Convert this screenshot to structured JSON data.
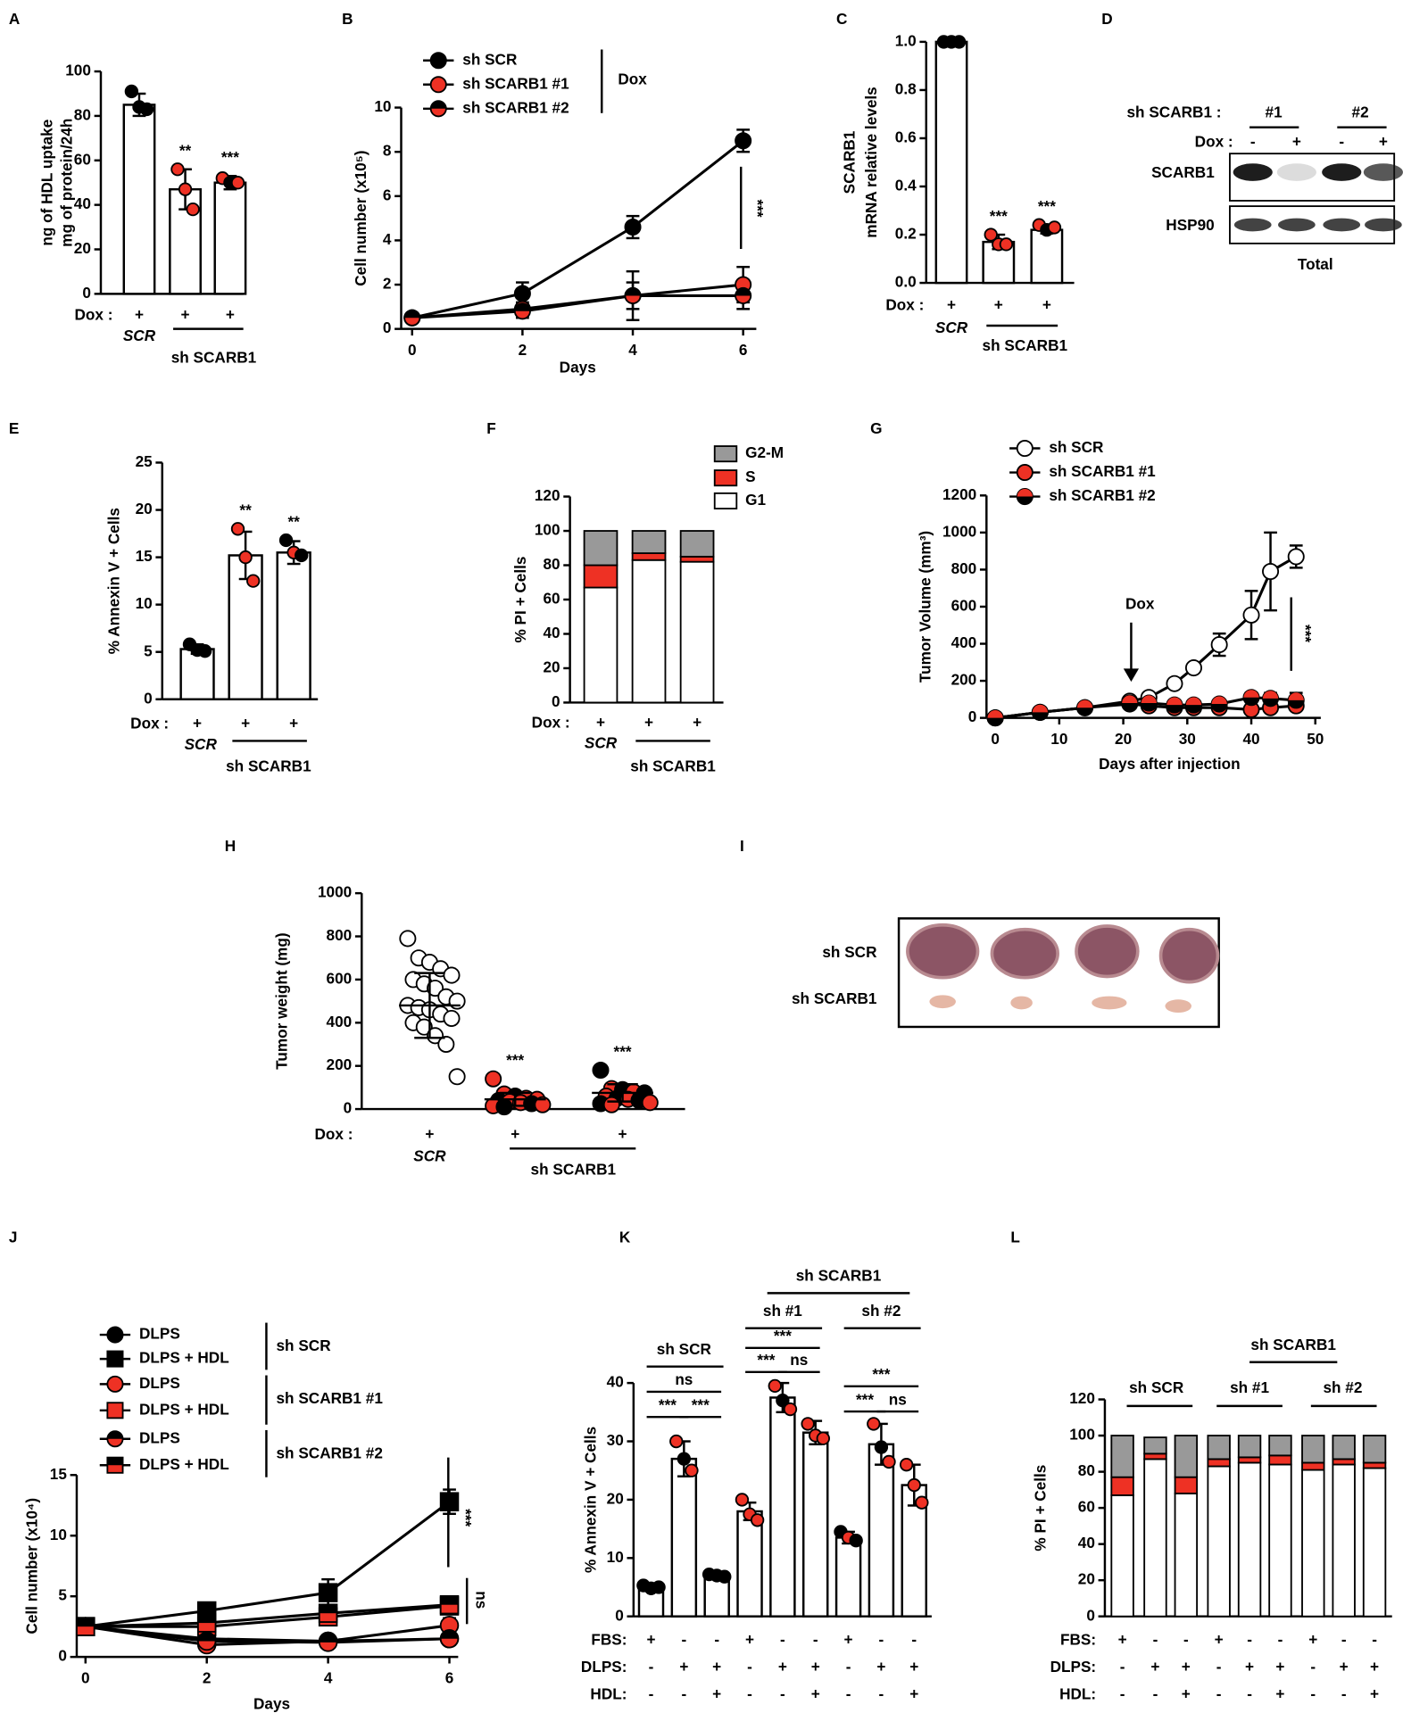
{
  "panel_labels": [
    "A",
    "B",
    "C",
    "D",
    "E",
    "F",
    "G",
    "H",
    "I",
    "J",
    "K",
    "L"
  ],
  "blot": {
    "header": "sh SCARB1 :",
    "groups": [
      "#1",
      "#2"
    ],
    "dox_label": "Dox :",
    "dox": [
      "-",
      "+",
      "-",
      "+"
    ],
    "rows": [
      "SCARB1",
      "HSP90"
    ],
    "caption": "Total"
  },
  "photo": {
    "rows": [
      "sh SCR",
      "sh SCARB1"
    ]
  },
  "chart_data": [
    {
      "type": "bar",
      "ylabel": [
        "ng of HDL uptake",
        "mg of protein/24h"
      ],
      "ylim": [
        0,
        100
      ],
      "yticks": [
        0,
        20,
        40,
        60,
        80,
        100
      ],
      "values": [
        85,
        47,
        50
      ],
      "errors": [
        5,
        9,
        3
      ],
      "points": [
        [
          91,
          84,
          83
        ],
        [
          56,
          47,
          38
        ],
        [
          52,
          50,
          50
        ]
      ],
      "point_colors": [
        [
          "#000000"
        ],
        [
          "#ee3124"
        ],
        [
          "#ee3124",
          "#000000",
          "#ee3124"
        ]
      ],
      "sig": [
        null,
        "**",
        "***"
      ],
      "rows": [
        {
          "label": "Dox :",
          "marks": [
            "+",
            "+",
            "+"
          ]
        }
      ],
      "groups": [
        "SCR",
        "sh SCARB1"
      ]
    },
    {
      "type": "line",
      "ylabel": "Cell number (x10⁵)",
      "xlabel": "Days",
      "xlim": [
        0,
        6
      ],
      "xticks": [
        0,
        2,
        4,
        6
      ],
      "ylim": [
        0,
        10
      ],
      "yticks": [
        0,
        2,
        4,
        6,
        8,
        10
      ],
      "x": [
        0,
        2,
        4,
        6
      ],
      "series": [
        {
          "name": "sh SCR",
          "color": "#000000",
          "marker": "circle",
          "values": [
            0.5,
            1.6,
            4.6,
            8.5
          ],
          "errors": [
            0.1,
            0.5,
            0.5,
            0.5
          ]
        },
        {
          "name": "sh SCARB1 #1",
          "color": "#ee3124",
          "marker": "circle",
          "values": [
            0.5,
            0.9,
            1.5,
            2.0
          ],
          "errors": [
            0.1,
            0.3,
            1.1,
            0.8
          ]
        },
        {
          "name": "sh SCARB1 #2",
          "color": "#ee3124",
          "color2": "#000000",
          "marker": "circle",
          "values": [
            0.5,
            0.8,
            1.5,
            1.5
          ],
          "errors": [
            0.1,
            0.3,
            0.6,
            0.6
          ]
        }
      ],
      "annotations": [
        "Dox",
        "***"
      ]
    },
    {
      "type": "bar",
      "ylabel": [
        "SCARB1",
        "mRNA relative levels"
      ],
      "ylim": [
        0,
        1
      ],
      "yticks": [
        {
          "value": 0,
          "label": "0.0"
        },
        {
          "value": 0.2,
          "label": "0.2"
        },
        {
          "value": 0.4,
          "label": "0.4"
        },
        {
          "value": 0.6,
          "label": "0.6"
        },
        {
          "value": 0.8,
          "label": "0.8"
        },
        {
          "value": 1,
          "label": "1.0"
        }
      ],
      "values": [
        1.0,
        0.17,
        0.22
      ],
      "errors": [
        0.005,
        0.03,
        0.015
      ],
      "points": [
        [
          1,
          1,
          1
        ],
        [
          0.2,
          0.16,
          0.16
        ],
        [
          0.24,
          0.22,
          0.23
        ]
      ],
      "point_colors": [
        [
          "#000000"
        ],
        [
          "#ee3124"
        ],
        [
          "#ee3124",
          "#000000",
          "#ee3124"
        ]
      ],
      "sig": [
        null,
        "***",
        "***"
      ],
      "rows": [
        {
          "label": "Dox :",
          "marks": [
            "+",
            "+",
            "+"
          ]
        }
      ],
      "groups": [
        "SCR",
        "sh SCARB1"
      ]
    },
    {
      "type": "bar",
      "ylabel": "% Annexin V + Cells",
      "ylim": [
        0,
        25
      ],
      "yticks": [
        0,
        5,
        10,
        15,
        20,
        25
      ],
      "values": [
        5.3,
        15.2,
        15.5
      ],
      "errors": [
        0.5,
        2.5,
        1.2
      ],
      "points": [
        [
          5.8,
          5.2,
          5.1
        ],
        [
          18,
          15,
          12.5
        ],
        [
          16.8,
          15.5,
          15.2
        ]
      ],
      "point_colors": [
        [
          "#000000"
        ],
        [
          "#ee3124"
        ],
        [
          "#000000",
          "#ee3124",
          "#000000"
        ]
      ],
      "sig": [
        null,
        "**",
        "**"
      ],
      "rows": [
        {
          "label": "Dox :",
          "marks": [
            "+",
            "+",
            "+"
          ]
        }
      ],
      "groups": [
        "SCR",
        "sh SCARB1"
      ]
    },
    {
      "type": "stacked_bar",
      "ylabel": "% PI + Cells",
      "ylim": [
        0,
        120
      ],
      "yticks": [
        0,
        20,
        40,
        60,
        80,
        100,
        120
      ],
      "series": [
        {
          "name": "G2-M",
          "color": "#999999",
          "values": [
            20,
            13,
            15
          ]
        },
        {
          "name": "S",
          "color": "#ee3124",
          "values": [
            13,
            4,
            3
          ]
        },
        {
          "name": "G1",
          "color": "#ffffff",
          "values": [
            67,
            83,
            82
          ]
        }
      ],
      "rows": [
        {
          "label": "Dox :",
          "marks": [
            "+",
            "+",
            "+"
          ]
        }
      ],
      "groups": [
        "SCR",
        "sh SCARB1"
      ]
    },
    {
      "type": "line",
      "ylabel": "Tumor Volume (mm³)",
      "xlabel": "Days after injection",
      "xlim": [
        0,
        50
      ],
      "xticks": [
        0,
        10,
        20,
        30,
        40,
        50
      ],
      "ylim": [
        0,
        1200
      ],
      "yticks": [
        0,
        200,
        400,
        600,
        800,
        1000,
        1200
      ],
      "x": [
        0,
        7,
        14,
        21,
        24,
        28,
        31,
        35,
        40,
        43,
        47
      ],
      "series": [
        {
          "name": "sh SCR",
          "color": "#ffffff",
          "marker": "circle",
          "values": [
            0,
            30,
            55,
            90,
            110,
            185,
            270,
            395,
            555,
            790,
            870
          ],
          "errors": [
            0,
            5,
            5,
            10,
            10,
            15,
            20,
            60,
            130,
            210,
            60
          ]
        },
        {
          "name": "sh SCARB1 #1",
          "color": "#ee3124",
          "marker": "circle",
          "values": [
            0,
            30,
            55,
            75,
            65,
            55,
            55,
            55,
            45,
            55,
            65
          ],
          "errors": [
            0,
            5,
            5,
            10,
            10,
            10,
            10,
            10,
            15,
            15,
            20
          ]
        },
        {
          "name": "sh SCARB1 #2",
          "color": "#000000",
          "color2": "#ee3124",
          "marker": "circle",
          "values": [
            0,
            30,
            55,
            80,
            80,
            70,
            70,
            75,
            110,
            105,
            95
          ],
          "errors": [
            0,
            5,
            5,
            10,
            10,
            15,
            15,
            20,
            25,
            30,
            40
          ]
        }
      ],
      "annotations": [
        "Dox",
        "***"
      ]
    },
    {
      "type": "dot",
      "ylabel": "Tumor weight (mg)",
      "ylim": [
        0,
        1000
      ],
      "yticks": [
        0,
        200,
        400,
        600,
        800,
        1000
      ],
      "values": [
        480,
        45,
        75
      ],
      "errors": [
        150,
        30,
        40
      ],
      "points": [
        [
          790,
          700,
          680,
          650,
          620,
          600,
          580,
          560,
          520,
          500,
          480,
          470,
          460,
          440,
          420,
          400,
          380,
          340,
          300,
          150
        ],
        [
          140,
          70,
          60,
          50,
          45,
          40,
          35,
          30,
          25,
          20,
          15,
          10
        ],
        [
          180,
          95,
          90,
          80,
          75,
          60,
          50,
          45,
          40,
          30,
          25,
          20
        ]
      ],
      "point_colors": [
        [
          "#ffffff"
        ],
        [
          "#ee3124",
          "#ee3124",
          "#000000"
        ],
        [
          "#000000",
          "#ee3124"
        ]
      ],
      "sig": [
        null,
        "***",
        "***"
      ],
      "rows": [
        {
          "label": "Dox :",
          "marks": [
            "+",
            "+",
            "+"
          ]
        }
      ],
      "groups": [
        "SCR",
        "sh SCARB1"
      ]
    },
    {
      "type": "line",
      "ylabel": "Cell number (x10⁴)",
      "xlabel": "Days",
      "xlim": [
        0,
        6
      ],
      "xticks": [
        0,
        2,
        4,
        6
      ],
      "ylim": [
        0,
        15
      ],
      "yticks": [
        0,
        5,
        10,
        15
      ],
      "x": [
        0,
        2,
        4,
        6
      ],
      "series": [
        {
          "name": "DLPS",
          "color": "#000000",
          "marker": "circle",
          "values": [
            2.5,
            1.5,
            1.3,
            1.5
          ],
          "errors": [
            0,
            0.3,
            0.4,
            0.5
          ]
        },
        {
          "name": "DLPS + HDL",
          "color": "#000000",
          "marker": "square",
          "values": [
            2.5,
            3.8,
            5.3,
            12.8
          ],
          "errors": [
            0,
            0.3,
            1.1,
            1.0
          ]
        },
        {
          "name": "DLPS",
          "color": "#ee3124",
          "marker": "circle",
          "values": [
            2.5,
            1.0,
            1.3,
            2.6
          ],
          "errors": [
            0,
            0.3,
            0.5,
            0.6
          ]
        },
        {
          "name": "DLPS + HDL",
          "color": "#ee3124",
          "marker": "square",
          "values": [
            2.5,
            2.5,
            3.3,
            4.2
          ],
          "errors": [
            0,
            0.3,
            0.6,
            0.5
          ]
        },
        {
          "name": "DLPS",
          "color": "#ee3124",
          "color2": "#000000",
          "marker": "circle",
          "values": [
            2.5,
            1.3,
            1.2,
            1.5
          ],
          "errors": [
            0,
            0.3,
            0.4,
            0.4
          ]
        },
        {
          "name": "DLPS + HDL",
          "color": "#ee3124",
          "color2": "#000000",
          "marker": "square",
          "values": [
            2.5,
            2.8,
            3.6,
            4.3
          ],
          "errors": [
            0,
            0.3,
            0.7,
            0.5
          ]
        }
      ],
      "legend_groups": [
        "sh SCR",
        "sh SCARB1 #1",
        "sh SCARB1 #2"
      ],
      "annotations": [
        "***",
        "ns"
      ]
    },
    {
      "type": "bar",
      "ylabel": "% Annexin V + Cells",
      "ylim": [
        0,
        40
      ],
      "yticks": [
        0,
        10,
        20,
        30,
        40
      ],
      "values": [
        5,
        27,
        7,
        18,
        37.5,
        31.5,
        13.5,
        29.5,
        22.5
      ],
      "errors": [
        0.5,
        3,
        0.4,
        1.5,
        2.5,
        2,
        1,
        3.5,
        3.5
      ],
      "points": [
        [
          5.3,
          4.8,
          5
        ],
        [
          30,
          27,
          25
        ],
        [
          7.2,
          7,
          6.8
        ],
        [
          20,
          17.5,
          16.5
        ],
        [
          39.5,
          37,
          35.5
        ],
        [
          33,
          31,
          30.5
        ],
        [
          14.5,
          13.5,
          13
        ],
        [
          33,
          29,
          26.5
        ],
        [
          26,
          22.5,
          19.5
        ]
      ],
      "point_colors": [
        [
          "#000000"
        ],
        [
          "#ee3124",
          "#000000"
        ],
        [
          "#000000"
        ],
        [
          "#ee3124"
        ],
        [
          "#ee3124",
          "#000000"
        ],
        [
          "#ee3124"
        ],
        [
          "#000000",
          "#ee3124"
        ],
        [
          "#ee3124",
          "#000000"
        ],
        [
          "#ee3124"
        ]
      ],
      "rows": [
        {
          "label": "FBS:",
          "marks": [
            "+",
            "-",
            "-",
            "+",
            "-",
            "-",
            "+",
            "-",
            "-"
          ]
        },
        {
          "label": "DLPS:",
          "marks": [
            "-",
            "+",
            "+",
            "-",
            "+",
            "+",
            "-",
            "+",
            "+"
          ]
        },
        {
          "label": "HDL:",
          "marks": [
            "-",
            "-",
            "+",
            "-",
            "-",
            "+",
            "-",
            "-",
            "+"
          ]
        }
      ],
      "groups": [
        "sh SCR",
        "sh #1",
        "sh #2",
        "sh SCARB1"
      ],
      "annotations": [
        "ns",
        "***",
        "***",
        "***",
        "***",
        "ns",
        "***",
        "***",
        "ns"
      ]
    },
    {
      "type": "stacked_bar",
      "ylabel": "% PI + Cells",
      "ylim": [
        0,
        120
      ],
      "yticks": [
        0,
        20,
        40,
        60,
        80,
        100,
        120
      ],
      "series": [
        {
          "color": "#999999",
          "values": [
            23,
            9,
            23,
            13,
            12,
            11,
            15,
            13,
            15
          ]
        },
        {
          "color": "#ee3124",
          "values": [
            10,
            3,
            9,
            4,
            3,
            5,
            4,
            3,
            3
          ]
        },
        {
          "color": "#ffffff",
          "values": [
            67,
            87,
            68,
            83,
            85,
            84,
            81,
            84,
            82
          ]
        }
      ],
      "rows": [
        {
          "label": "FBS:",
          "marks": [
            "+",
            "-",
            "-",
            "+",
            "-",
            "-",
            "+",
            "-",
            "-"
          ]
        },
        {
          "label": "DLPS:",
          "marks": [
            "-",
            "+",
            "+",
            "-",
            "+",
            "+",
            "-",
            "+",
            "+"
          ]
        },
        {
          "label": "HDL:",
          "marks": [
            "-",
            "-",
            "+",
            "-",
            "-",
            "+",
            "-",
            "-",
            "+"
          ]
        }
      ],
      "groups": [
        "sh SCR",
        "sh #1",
        "sh #2",
        "sh SCARB1"
      ]
    }
  ]
}
